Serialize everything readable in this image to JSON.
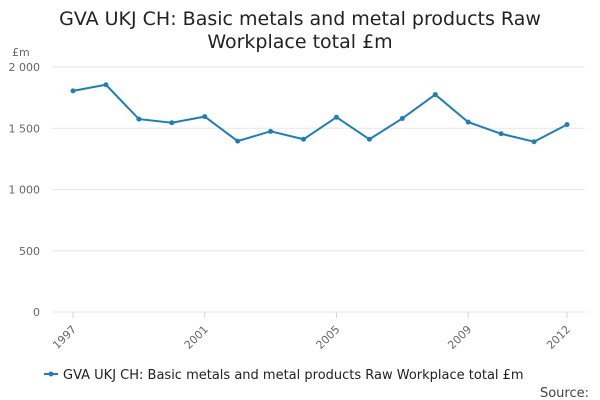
{
  "chart_data": {
    "type": "line",
    "title_line1": "GVA UKJ CH: Basic metals and metal products Raw",
    "title_line2": "Workplace total £m",
    "unit_label": "£m",
    "x": [
      1997,
      1998,
      1999,
      2000,
      2001,
      2002,
      2003,
      2004,
      2005,
      2006,
      2007,
      2008,
      2009,
      2010,
      2011,
      2012
    ],
    "x_tick_labels": [
      "1997",
      "2001",
      "2005",
      "2009",
      "2012"
    ],
    "x_tick_values": [
      1997,
      2001,
      2005,
      2009,
      2012
    ],
    "ylim": [
      0,
      2000
    ],
    "y_tick_values": [
      0,
      500,
      1000,
      1500,
      2000
    ],
    "y_tick_labels": [
      "0",
      "500",
      "1 000",
      "1 500",
      "2 000"
    ],
    "grid": true,
    "series": [
      {
        "name": "GVA UKJ CH: Basic metals and metal products Raw Workplace total £m",
        "color": "#1f7fb4",
        "values": [
          1805,
          1855,
          1575,
          1545,
          1595,
          1395,
          1475,
          1410,
          1590,
          1410,
          1580,
          1775,
          1550,
          1455,
          1390,
          1530
        ]
      }
    ],
    "legend_position": "bottom",
    "source_label": "Source:"
  }
}
